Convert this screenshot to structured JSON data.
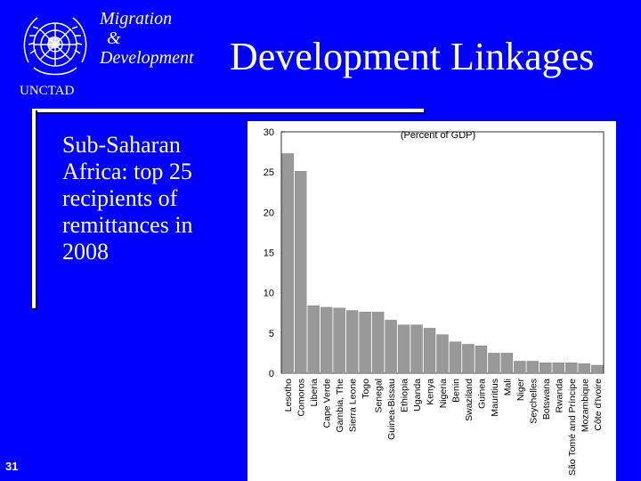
{
  "header": {
    "org_name": "UNCTAD",
    "topic_lines": [
      "Migration",
      "&",
      "Development"
    ],
    "title": "Development Linkages"
  },
  "subtitle": "Sub-Saharan Africa: top 25 recipients of remittances in 2008",
  "page_number": "31",
  "logo": {
    "icon": "un-emblem-icon"
  },
  "colors": {
    "background": "#0000ff",
    "bar": "#999999",
    "text": "#ffffff"
  },
  "chart_data": {
    "type": "bar",
    "title": "(Percent of GDP)",
    "xlabel": "",
    "ylabel": "",
    "ylim": [
      0,
      30
    ],
    "yticks": [
      0,
      5,
      10,
      15,
      20,
      25,
      30
    ],
    "grid": false,
    "categories": [
      "Lesotho",
      "Comoros",
      "Liberia",
      "Cape Verde",
      "Gambia, The",
      "Sierra Leone",
      "Togo",
      "Senegal",
      "Guinea-Bissau",
      "Ethiopia",
      "Uganda",
      "Kenya",
      "Nigeria",
      "Benin",
      "Swaziland",
      "Guinea",
      "Mauritius",
      "Mali",
      "Niger",
      "Seychelles",
      "Botswana",
      "Rwanda",
      "São Tomé and Príncipe",
      "Mozambique",
      "Côte d'Ivoire"
    ],
    "values": [
      27.3,
      25.1,
      8.4,
      8.2,
      8.1,
      7.8,
      7.6,
      7.6,
      6.6,
      6.0,
      6.0,
      5.6,
      4.8,
      3.9,
      3.6,
      3.4,
      2.5,
      2.5,
      1.5,
      1.5,
      1.3,
      1.3,
      1.3,
      1.2,
      1.0
    ]
  }
}
